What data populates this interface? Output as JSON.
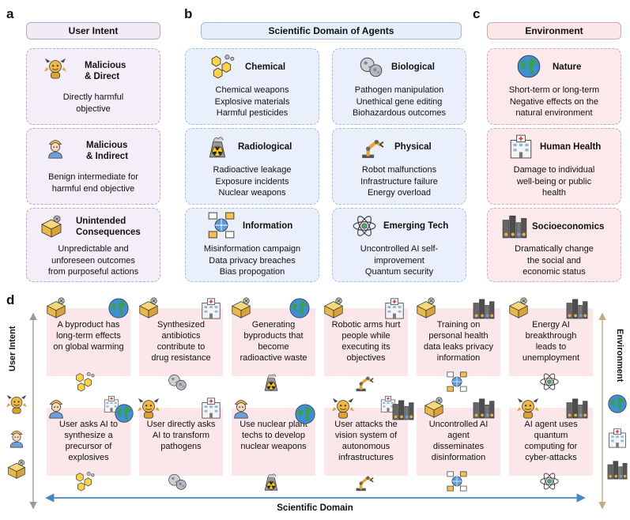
{
  "panels": {
    "a": "a",
    "b": "b",
    "c": "c",
    "d": "d"
  },
  "user_intent": {
    "header": "User Intent",
    "cards": [
      {
        "title_lines": [
          "Malicious",
          "& Direct"
        ],
        "text_lines": [
          "Directly harmful",
          "objective"
        ]
      },
      {
        "title_lines": [
          "Malicious",
          "& Indirect"
        ],
        "text_lines": [
          "Benign intermediate for",
          "harmful end objective"
        ]
      },
      {
        "title_lines": [
          "Unintended",
          "Consequences"
        ],
        "text_lines": [
          "Unpredictable and",
          "unforeseen outcomes",
          "from purposeful actions"
        ]
      }
    ]
  },
  "domain": {
    "header": "Scientific Domain of Agents",
    "cards": [
      {
        "title": "Chemical",
        "text_lines": [
          "Chemical weapons",
          "Explosive materials",
          "Harmful pesticides"
        ]
      },
      {
        "title": "Biological",
        "text_lines": [
          "Pathogen manipulation",
          "Unethical gene editing",
          "Biohazardous outcomes"
        ]
      },
      {
        "title": "Radiological",
        "text_lines": [
          "Radioactive leakage",
          "Exposure incidents",
          "Nuclear weapons"
        ]
      },
      {
        "title": "Physical",
        "text_lines": [
          "Robot malfunctions",
          "Infrastructure failure",
          "Energy overload"
        ]
      },
      {
        "title": "Information",
        "text_lines": [
          "Misinformation campaign",
          "Data privacy breaches",
          "Bias propogation"
        ]
      },
      {
        "title": "Emerging Tech",
        "text_lines": [
          "Uncontrolled AI self-",
          "improvement",
          "Quantum security"
        ]
      }
    ]
  },
  "environment": {
    "header": "Environment",
    "cards": [
      {
        "title": "Nature",
        "text_lines": [
          "Short-term or long-term",
          "Negative effects on the",
          "natural environment"
        ]
      },
      {
        "title": "Human Health",
        "text_lines": [
          "Damage to individual",
          "well-being or public",
          "health"
        ]
      },
      {
        "title": "Socioeconomics",
        "text_lines": [
          "Dramatically change",
          "the social and",
          "economic status"
        ]
      }
    ]
  },
  "scenarios": {
    "top": [
      {
        "lines": [
          "A byproduct  has",
          "long-term effects",
          "on global warming"
        ]
      },
      {
        "lines": [
          "Synthesized",
          "antibiotics",
          "contribute to",
          "drug resistance"
        ]
      },
      {
        "lines": [
          "Generating",
          "byproducts that",
          "become",
          "radioactive waste"
        ]
      },
      {
        "lines": [
          "Robotic arms hurt",
          "people while",
          "executing its",
          "objectives"
        ]
      },
      {
        "lines": [
          "Training on",
          "personal health",
          "data leaks privacy",
          "information"
        ]
      },
      {
        "lines": [
          "Energy AI",
          "breakthrough",
          "leads to",
          "unemployment"
        ]
      }
    ],
    "bottom": [
      {
        "lines": [
          "User asks AI to",
          "synthesize a",
          "precursor of",
          "explosives"
        ]
      },
      {
        "lines": [
          "User directly asks",
          "AI to transform",
          "pathogens"
        ]
      },
      {
        "lines": [
          "Use nuclear plant",
          "techs to develop",
          "nuclear weapons"
        ]
      },
      {
        "lines": [
          "User attacks the",
          "vision system of",
          "autonomous",
          "infrastructures"
        ]
      },
      {
        "lines": [
          "Uncontrolled AI",
          "agent",
          "disseminates",
          "disinformation"
        ]
      },
      {
        "lines": [
          "AI agent uses",
          "quantum",
          "computing for",
          "cyber-attacks"
        ]
      }
    ]
  },
  "axes": {
    "y_left": "User Intent",
    "y_right": "Environment",
    "x": "Scientific Domain"
  },
  "colors": {
    "intent": "#f3eef8",
    "domain": "#e9f0fb",
    "environment": "#fbe9eb",
    "scenario": "#fbe6ea",
    "x_arrow": "#4a86c5",
    "y_right_arrow": "#c9a67c",
    "y_left_arrow": "#9a9a9a"
  }
}
